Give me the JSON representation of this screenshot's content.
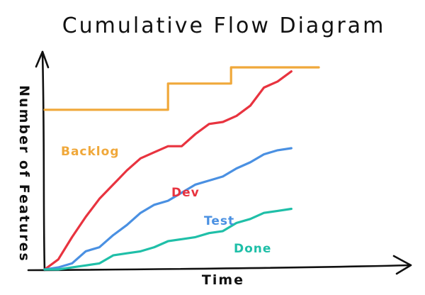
{
  "chart_data": {
    "type": "line",
    "title": "Cumulative Flow Diagram",
    "xlabel": "Time",
    "ylabel": "Number of Features",
    "xlim": [
      0,
      100
    ],
    "ylim": [
      0,
      100
    ],
    "grid": false,
    "legend": "inline labels",
    "series": [
      {
        "name": "Backlog",
        "color": "#f0a83a",
        "points": [
          [
            0,
            79
          ],
          [
            45,
            79
          ],
          [
            45,
            92
          ],
          [
            68,
            92
          ],
          [
            68,
            100
          ],
          [
            100,
            100
          ]
        ]
      },
      {
        "name": "Dev",
        "color": "#e8333f",
        "points": [
          [
            0,
            0
          ],
          [
            5,
            5
          ],
          [
            10,
            16
          ],
          [
            15,
            26
          ],
          [
            20,
            35
          ],
          [
            25,
            42
          ],
          [
            30,
            49
          ],
          [
            35,
            55
          ],
          [
            40,
            58
          ],
          [
            45,
            61
          ],
          [
            50,
            61
          ],
          [
            55,
            67
          ],
          [
            60,
            72
          ],
          [
            65,
            73
          ],
          [
            70,
            76
          ],
          [
            75,
            81
          ],
          [
            80,
            90
          ],
          [
            85,
            93
          ],
          [
            90,
            98
          ]
        ]
      },
      {
        "name": "Test",
        "color": "#4a90e2",
        "points": [
          [
            0,
            0
          ],
          [
            5,
            1
          ],
          [
            10,
            3
          ],
          [
            15,
            9
          ],
          [
            20,
            11
          ],
          [
            25,
            17
          ],
          [
            30,
            22
          ],
          [
            35,
            28
          ],
          [
            40,
            32
          ],
          [
            45,
            34
          ],
          [
            50,
            38
          ],
          [
            55,
            42
          ],
          [
            60,
            44
          ],
          [
            65,
            46
          ],
          [
            70,
            50
          ],
          [
            75,
            53
          ],
          [
            80,
            57
          ],
          [
            85,
            59
          ],
          [
            90,
            60
          ]
        ]
      },
      {
        "name": "Done",
        "color": "#1fbfa8",
        "points": [
          [
            0,
            0
          ],
          [
            5,
            0
          ],
          [
            10,
            1
          ],
          [
            15,
            2
          ],
          [
            20,
            3
          ],
          [
            25,
            7
          ],
          [
            30,
            8
          ],
          [
            35,
            9
          ],
          [
            40,
            11
          ],
          [
            45,
            14
          ],
          [
            50,
            15
          ],
          [
            55,
            16
          ],
          [
            60,
            18
          ],
          [
            65,
            19
          ],
          [
            70,
            23
          ],
          [
            75,
            25
          ],
          [
            80,
            28
          ],
          [
            85,
            29
          ],
          [
            90,
            30
          ]
        ]
      }
    ]
  }
}
